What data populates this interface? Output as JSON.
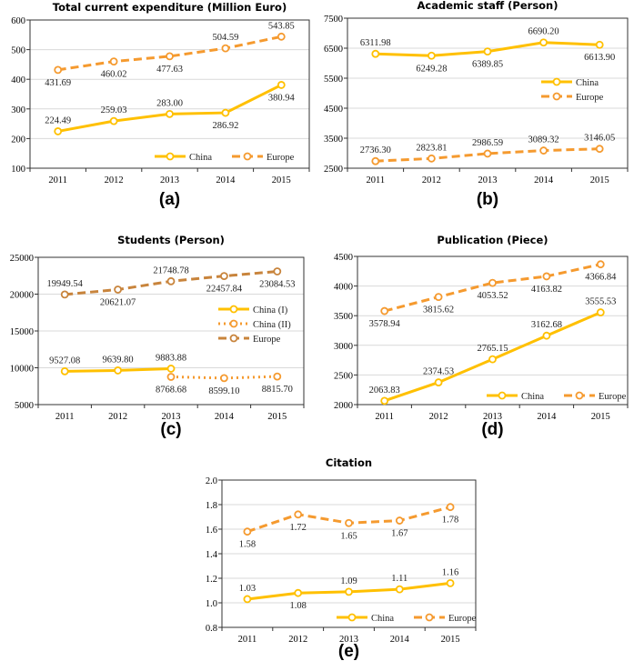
{
  "chart_data": [
    {
      "type": "line",
      "panel": "(a)",
      "title": "Total current expenditure (Million Euro)",
      "categories": [
        "2011",
        "2012",
        "2013",
        "2014",
        "2015"
      ],
      "ylim": [
        100,
        600
      ],
      "ystep": 100,
      "ydecimals": 0,
      "legend": "bottom-right",
      "grid": true,
      "series": [
        {
          "name": "China",
          "style": "solid",
          "color": "#FFC000",
          "values": [
            224.49,
            259.03,
            283.0,
            286.92,
            380.94
          ],
          "labels": [
            "224.49",
            "259.03",
            "283.00",
            "286.92",
            "380.94"
          ]
        },
        {
          "name": "Europe",
          "style": "dashed",
          "color": "#F59A2F",
          "values": [
            431.69,
            460.02,
            477.63,
            504.59,
            543.85
          ],
          "labels": [
            "431.69",
            "460.02",
            "477.63",
            "504.59",
            "543.85"
          ]
        }
      ]
    },
    {
      "type": "line",
      "panel": "(b)",
      "title": "Academic staff (Person)",
      "categories": [
        "2011",
        "2012",
        "2013",
        "2014",
        "2015"
      ],
      "ylim": [
        2500,
        7500
      ],
      "ystep": 1000,
      "ydecimals": 0,
      "legend": "right",
      "grid": true,
      "series": [
        {
          "name": "China",
          "style": "solid",
          "color": "#FFC000",
          "values": [
            6311.98,
            6249.28,
            6389.85,
            6690.2,
            6613.9
          ],
          "labels": [
            "6311.98",
            "6249.28",
            "6389.85",
            "6690.20",
            "6613.90"
          ]
        },
        {
          "name": "Europe",
          "style": "dashed",
          "color": "#F59A2F",
          "values": [
            2736.3,
            2823.81,
            2986.59,
            3089.32,
            3146.05
          ],
          "labels": [
            "2736.30",
            "2823.81",
            "2986.59",
            "3089.32",
            "3146.05"
          ]
        }
      ]
    },
    {
      "type": "line",
      "panel": "(c)",
      "title": "Students (Person)",
      "categories": [
        "2011",
        "2012",
        "2013",
        "2014",
        "2015"
      ],
      "ylim": [
        5000,
        25000
      ],
      "ystep": 5000,
      "ydecimals": 0,
      "legend": "right",
      "grid": true,
      "series": [
        {
          "name": "China (I)",
          "style": "solid",
          "color": "#FFC000",
          "values": [
            9527.08,
            9639.8,
            9883.88,
            null,
            null
          ],
          "labels": [
            "9527.08",
            "9639.80",
            "9883.88",
            "",
            ""
          ]
        },
        {
          "name": "China (II)",
          "style": "dotted",
          "color": "#F59A2F",
          "values": [
            null,
            null,
            8768.68,
            8599.1,
            8815.7
          ],
          "labels": [
            "",
            "",
            "8768.68",
            "8599.10",
            "8815.70"
          ]
        },
        {
          "name": "Europe",
          "style": "dashed",
          "color": "#C8843C",
          "values": [
            19949.54,
            20621.07,
            21748.78,
            22457.84,
            23084.53
          ],
          "labels": [
            "19949.54",
            "20621.07",
            "21748.78",
            "22457.84",
            "23084.53"
          ]
        }
      ]
    },
    {
      "type": "line",
      "panel": "(d)",
      "title": "Publication (Piece)",
      "categories": [
        "2011",
        "2012",
        "2013",
        "2014",
        "2015"
      ],
      "ylim": [
        2000,
        4500
      ],
      "ystep": 500,
      "ydecimals": 0,
      "legend": "bottom-right",
      "grid": true,
      "series": [
        {
          "name": "China",
          "style": "solid",
          "color": "#FFC000",
          "values": [
            2063.83,
            2374.53,
            2765.15,
            3162.68,
            3555.53
          ],
          "labels": [
            "2063.83",
            "2374.53",
            "2765.15",
            "3162.68",
            "3555.53"
          ]
        },
        {
          "name": "Europe",
          "style": "dashed",
          "color": "#F59A2F",
          "values": [
            3578.94,
            3815.62,
            4053.52,
            4163.82,
            4366.84
          ],
          "labels": [
            "3578.94",
            "3815.62",
            "4053.52",
            "4163.82",
            "4366.84"
          ]
        }
      ]
    },
    {
      "type": "line",
      "panel": "(e)",
      "title": "Citation",
      "categories": [
        "2011",
        "2012",
        "2013",
        "2014",
        "2015"
      ],
      "ylim": [
        0.8,
        2.0
      ],
      "ystep": 0.2,
      "ydecimals": 1,
      "legend": "bottom-center",
      "grid": true,
      "series": [
        {
          "name": "China",
          "style": "solid",
          "color": "#FFC000",
          "values": [
            1.03,
            1.08,
            1.09,
            1.11,
            1.16
          ],
          "labels": [
            "1.03",
            "1.08",
            "1.09",
            "1.11",
            "1.16"
          ]
        },
        {
          "name": "Europe",
          "style": "dashed",
          "color": "#F59A2F",
          "values": [
            1.58,
            1.72,
            1.65,
            1.67,
            1.78
          ],
          "labels": [
            "1.58",
            "1.72",
            "1.65",
            "1.67",
            "1.78"
          ]
        }
      ]
    }
  ]
}
